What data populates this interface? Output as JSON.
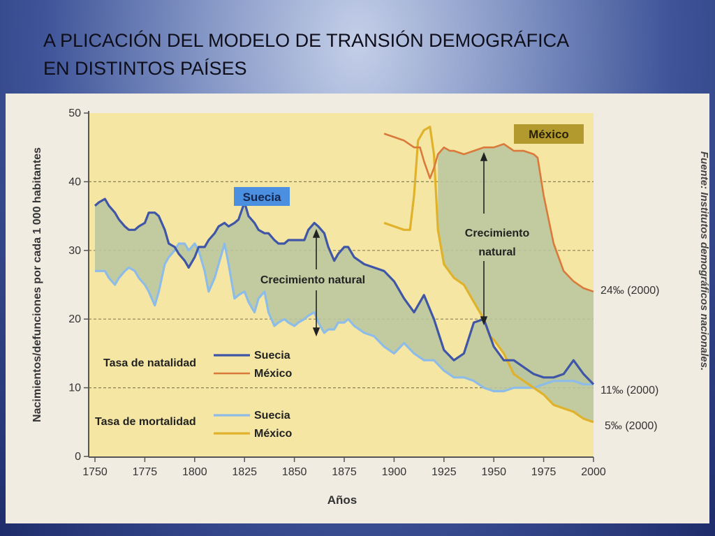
{
  "slide": {
    "title_line1": "A PLICACIÓN DEL MODELO DE TRANSIÓN DEMOGRÁFICA",
    "title_line2": "EN DISTINTOS PAÍSES"
  },
  "chart_data": {
    "type": "line",
    "xlabel": "Años",
    "ylabel": "Nacimientos/defunciones por cada 1 000 habitantes",
    "xlim": [
      1750,
      2000
    ],
    "ylim": [
      0,
      50
    ],
    "x_ticks": [
      "1750",
      "1775",
      "1800",
      "1825",
      "1850",
      "1875",
      "1900",
      "1925",
      "1950",
      "1975",
      "2000"
    ],
    "y_ticks": [
      "0",
      "10",
      "20",
      "30",
      "40",
      "50"
    ],
    "gridlines": "dashed horizontal at 10, 20, 30, 40",
    "source": "Fuente: Institutos demográficos nacionales.",
    "legend": {
      "natalidad_label": "Tasa de natalidad",
      "mortalidad_label": "Tasa de mortalidad",
      "suecia": "Suecia",
      "mexico": "México"
    },
    "country_labels": {
      "suecia": "Suecia",
      "mexico": "México"
    },
    "annotations": {
      "crecimiento_natural_1": "Crecimiento natural",
      "crecimiento_natural_2_line1": "Crecimiento",
      "crecimiento_natural_2_line2": "natural",
      "mexico_birth_2000": "24‰ (2000)",
      "suecia_2000": "11‰ (2000)",
      "mexico_death_2000": "5‰ (2000)"
    },
    "colors": {
      "suecia_natalidad": "#3f55a6",
      "mexico_natalidad": "#d9793a",
      "suecia_mortalidad": "#8ebce8",
      "mexico_mortalidad": "#e0b22c",
      "plot_background": "#f5e6a3",
      "growth_area": "#b9c5a0",
      "label_box_suecia": "#4a8fe0",
      "label_box_mexico": "#b39a2e"
    },
    "series": [
      {
        "name": "Suecia natalidad",
        "x": [
          1750,
          1752,
          1755,
          1757,
          1760,
          1762,
          1765,
          1767,
          1770,
          1772,
          1775,
          1777,
          1780,
          1782,
          1785,
          1787,
          1790,
          1792,
          1795,
          1797,
          1800,
          1802,
          1805,
          1807,
          1810,
          1812,
          1815,
          1817,
          1820,
          1822,
          1825,
          1827,
          1830,
          1832,
          1835,
          1837,
          1840,
          1842,
          1845,
          1847,
          1850,
          1852,
          1855,
          1857,
          1860,
          1862,
          1865,
          1867,
          1870,
          1872,
          1875,
          1877,
          1880,
          1885,
          1890,
          1895,
          1900,
          1905,
          1910,
          1915,
          1920,
          1925,
          1930,
          1935,
          1940,
          1945,
          1950,
          1955,
          1960,
          1965,
          1970,
          1975,
          1980,
          1985,
          1990,
          1995,
          2000
        ],
        "values": [
          36.5,
          37,
          37.5,
          36.5,
          35.5,
          34.5,
          33.5,
          33,
          33,
          33.5,
          34,
          35.5,
          35.5,
          35,
          33,
          31,
          30.5,
          29.5,
          28.5,
          27.5,
          29,
          30.5,
          30.5,
          31.5,
          32.5,
          33.5,
          34,
          33.5,
          34,
          34.5,
          37,
          35,
          34,
          33,
          32.5,
          32.5,
          31.5,
          31,
          31,
          31.5,
          31.5,
          31.5,
          31.5,
          33,
          34,
          33.5,
          32.5,
          30.5,
          28.5,
          29.5,
          30.5,
          30.5,
          29,
          28,
          27.5,
          27,
          25.5,
          23,
          21,
          23.5,
          20,
          15.5,
          14,
          15,
          19.5,
          20,
          16,
          14,
          14,
          13,
          12,
          11.5,
          11.5,
          12,
          14,
          12,
          10.5
        ]
      },
      {
        "name": "Suecia mortalidad",
        "x": [
          1750,
          1752,
          1755,
          1757,
          1760,
          1762,
          1765,
          1767,
          1770,
          1772,
          1775,
          1777,
          1780,
          1782,
          1785,
          1787,
          1790,
          1792,
          1795,
          1797,
          1800,
          1802,
          1805,
          1807,
          1810,
          1812,
          1815,
          1817,
          1820,
          1822,
          1825,
          1827,
          1830,
          1832,
          1835,
          1837,
          1840,
          1842,
          1845,
          1847,
          1850,
          1852,
          1855,
          1857,
          1860,
          1862,
          1865,
          1867,
          1870,
          1872,
          1875,
          1877,
          1880,
          1885,
          1890,
          1895,
          1900,
          1905,
          1910,
          1915,
          1920,
          1925,
          1930,
          1935,
          1940,
          1945,
          1950,
          1955,
          1960,
          1965,
          1970,
          1975,
          1980,
          1985,
          1990,
          1995,
          2000
        ],
        "values": [
          27,
          27,
          27,
          26,
          25,
          26,
          27,
          27.5,
          27,
          26,
          25,
          24,
          22,
          24,
          28,
          29,
          30,
          31,
          31,
          30,
          31,
          30,
          27,
          24,
          26,
          28,
          31,
          28,
          23,
          23.5,
          24,
          22.5,
          21,
          23,
          24,
          21,
          19,
          19.5,
          20,
          19.5,
          19,
          19.5,
          20,
          20.5,
          21,
          19.5,
          18,
          18.5,
          18.5,
          19.5,
          19.5,
          20,
          19,
          18,
          17.5,
          16,
          15,
          16.5,
          15,
          14,
          14,
          12.5,
          11.5,
          11.5,
          11,
          10,
          9.5,
          9.5,
          10,
          10,
          10,
          10.5,
          11,
          11,
          11,
          10.5,
          10.5
        ]
      },
      {
        "name": "México natalidad",
        "x": [
          1895,
          1900,
          1905,
          1910,
          1913,
          1915,
          1918,
          1920,
          1922,
          1925,
          1928,
          1930,
          1935,
          1940,
          1945,
          1950,
          1955,
          1960,
          1965,
          1970,
          1972,
          1975,
          1980,
          1985,
          1990,
          1995,
          2000
        ],
        "values": [
          47,
          46.5,
          46,
          45,
          45,
          43,
          40.5,
          42,
          44,
          45,
          44.5,
          44.5,
          44,
          44.5,
          45,
          45,
          45.5,
          44.5,
          44.5,
          44,
          43.5,
          38,
          31,
          27,
          25.5,
          24.5,
          24
        ]
      },
      {
        "name": "México mortalidad",
        "x": [
          1895,
          1900,
          1905,
          1908,
          1910,
          1912,
          1915,
          1918,
          1920,
          1922,
          1925,
          1930,
          1935,
          1940,
          1945,
          1948,
          1950,
          1955,
          1960,
          1965,
          1970,
          1975,
          1980,
          1985,
          1990,
          1995,
          2000
        ],
        "values": [
          34,
          33.5,
          33,
          33,
          38,
          46,
          47.5,
          48,
          44,
          33,
          28,
          26,
          25,
          22.5,
          20,
          17.5,
          17,
          15,
          12,
          11,
          10,
          9,
          7.5,
          7,
          6.5,
          5.5,
          5
        ]
      }
    ]
  }
}
